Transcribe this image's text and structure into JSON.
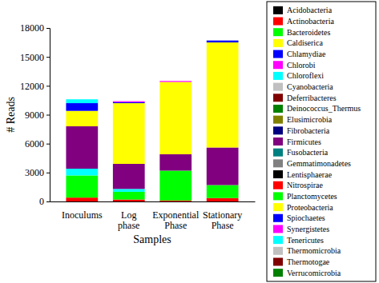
{
  "chart_data": {
    "type": "bar",
    "stacked": true,
    "legend": "right",
    "x_label": "Samples",
    "y_label": "# Reads",
    "categories": [
      "Inoculums",
      "Log phase",
      "Exponential Phase",
      "Stationary Phase"
    ],
    "ylim": [
      0,
      18000
    ],
    "yticks": [
      0,
      3000,
      6000,
      9000,
      12000,
      15000,
      18000
    ],
    "series": [
      {
        "name": "Acidobacteria",
        "color": "#000000",
        "values": [
          0,
          0,
          0,
          0
        ]
      },
      {
        "name": "Actinobacteria",
        "color": "#ff0000",
        "values": [
          400,
          200,
          100,
          350
        ]
      },
      {
        "name": "Bacteroidetes",
        "color": "#00ff00",
        "values": [
          2300,
          800,
          3100,
          1350
        ]
      },
      {
        "name": "Caldiserica",
        "color": "#ffff00",
        "values": [
          0,
          0,
          0,
          0
        ]
      },
      {
        "name": "Chlamydiae",
        "color": "#0000ff",
        "values": [
          0,
          0,
          0,
          0
        ]
      },
      {
        "name": "Chlorobi",
        "color": "#ff00ff",
        "values": [
          0,
          0,
          0,
          0
        ]
      },
      {
        "name": "Chloroflexi",
        "color": "#00ffff",
        "values": [
          700,
          300,
          0,
          0
        ]
      },
      {
        "name": "Cyanobacteria",
        "color": "#c0c0c0",
        "values": [
          0,
          0,
          0,
          0
        ]
      },
      {
        "name": "Deferribacteres",
        "color": "#800000",
        "values": [
          0,
          0,
          0,
          0
        ]
      },
      {
        "name": "Deinococcus_Thermus",
        "color": "#008000",
        "values": [
          0,
          0,
          0,
          0
        ]
      },
      {
        "name": "Elusimicrobia",
        "color": "#808000",
        "values": [
          0,
          0,
          0,
          0
        ]
      },
      {
        "name": "Fibrobacteria",
        "color": "#000080",
        "values": [
          0,
          0,
          0,
          0
        ]
      },
      {
        "name": "Firmicutes",
        "color": "#800080",
        "values": [
          4400,
          2600,
          1700,
          3900
        ]
      },
      {
        "name": "Fusobacteria",
        "color": "#008080",
        "values": [
          0,
          0,
          0,
          0
        ]
      },
      {
        "name": "Gemmatimonadetes",
        "color": "#808080",
        "values": [
          0,
          0,
          0,
          0
        ]
      },
      {
        "name": "Lentisphaerae",
        "color": "#000000",
        "values": [
          0,
          0,
          0,
          0
        ]
      },
      {
        "name": "Nitrospirae",
        "color": "#ff0000",
        "values": [
          0,
          0,
          0,
          0
        ]
      },
      {
        "name": "Planctomycetes",
        "color": "#00ff00",
        "values": [
          0,
          0,
          0,
          0
        ]
      },
      {
        "name": "Proteobacteria",
        "color": "#ffff00",
        "values": [
          1600,
          6300,
          7500,
          10900
        ]
      },
      {
        "name": "Spiochaetes",
        "color": "#0000ff",
        "values": [
          800,
          100,
          0,
          200
        ]
      },
      {
        "name": "Synergistetes",
        "color": "#ff00ff",
        "values": [
          0,
          100,
          100,
          0
        ]
      },
      {
        "name": "Tenericutes",
        "color": "#00ffff",
        "values": [
          400,
          0,
          0,
          0
        ]
      },
      {
        "name": "Thermomicrobia",
        "color": "#c0c0c0",
        "values": [
          0,
          0,
          0,
          0
        ]
      },
      {
        "name": "Thermotogae",
        "color": "#800000",
        "values": [
          0,
          0,
          0,
          0
        ]
      },
      {
        "name": "Verrucomicrobia",
        "color": "#008000",
        "values": [
          0,
          0,
          0,
          0
        ]
      }
    ]
  }
}
